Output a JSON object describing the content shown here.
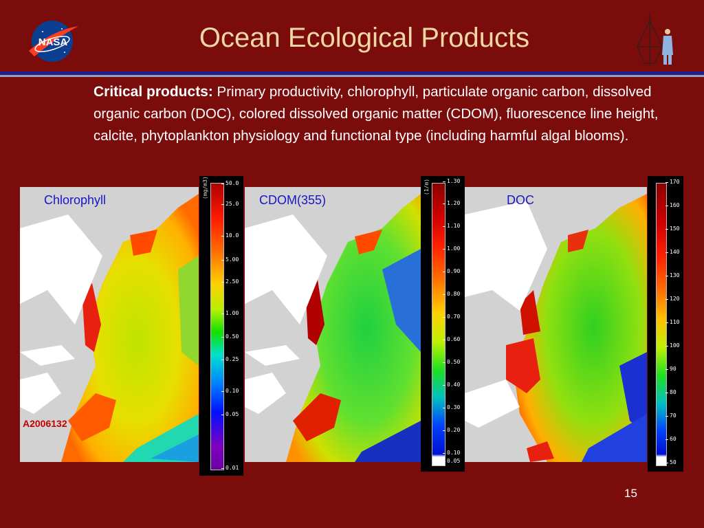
{
  "slide": {
    "title": "Ocean Ecological Products",
    "page_number": "15",
    "logo_text": "NASA",
    "body_lead": "Critical products:",
    "body_text": " Primary productivity, chlorophyll, particulate organic carbon, dissolved organic carbon (DOC), colored dissolved organic matter (CDOM), fluorescence line height, calcite, phytoplankton physiology and functional type (including harmful algal blooms)."
  },
  "panels": [
    {
      "label": "Chlorophyll",
      "date": "A2006132",
      "unit": "(mg/m3)",
      "ticks": [
        "50.0",
        "25.0",
        "10.0",
        "5.00",
        "2.50",
        "1.00",
        "0.50",
        "0.25",
        "0.10",
        "0.05",
        "0.01"
      ]
    },
    {
      "label": "CDOM(355)",
      "unit": "(1/m)",
      "ticks": [
        "1.30",
        "1.20",
        "1.10",
        "1.00",
        "0.90",
        "0.80",
        "0.70",
        "0.60",
        "0.50",
        "0.40",
        "0.30",
        "0.20",
        "0.10",
        "0.05"
      ]
    },
    {
      "label": "DOC",
      "unit": "",
      "ticks": [
        "170",
        "160",
        "150",
        "140",
        "130",
        "120",
        "110",
        "100",
        "90",
        "80",
        "70",
        "60",
        "50"
      ]
    }
  ],
  "colors": {
    "background": "#7a0c0c",
    "title": "#f2d7a6",
    "panel_label": "#1616c8",
    "date_tag": "#c40000"
  }
}
